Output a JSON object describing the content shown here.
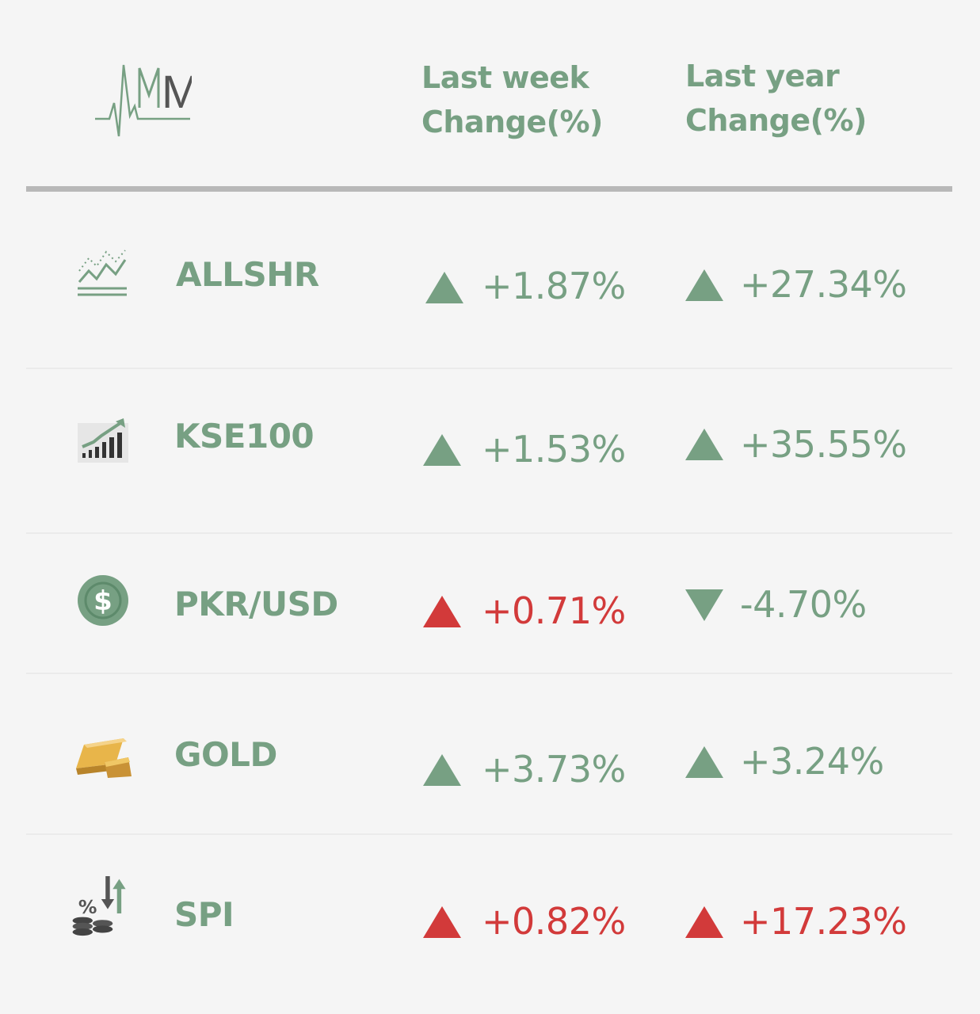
{
  "header": {
    "logo_text": "MP",
    "col_week": [
      "Last week",
      "Change(%)"
    ],
    "col_year": [
      "Last year",
      "Change(%)"
    ]
  },
  "colors": {
    "green": "#77a083",
    "red": "#d23a3a"
  },
  "rows": [
    {
      "icon": "line-chart-icon",
      "name": "ALLSHR",
      "week": {
        "dir": "up",
        "color": "green",
        "value": "+1.87%"
      },
      "year": {
        "dir": "up",
        "color": "green",
        "value": "+27.34%"
      }
    },
    {
      "icon": "bar-chart-trend-icon",
      "name": "KSE100",
      "week": {
        "dir": "up",
        "color": "green",
        "value": "+1.53%"
      },
      "year": {
        "dir": "up",
        "color": "green",
        "value": "+35.55%"
      }
    },
    {
      "icon": "dollar-coin-icon",
      "name": "PKR/USD",
      "week": {
        "dir": "up",
        "color": "red",
        "value": "+0.71%"
      },
      "year": {
        "dir": "down",
        "color": "green",
        "value": "-4.70%"
      }
    },
    {
      "icon": "gold-bars-icon",
      "name": "GOLD",
      "week": {
        "dir": "up",
        "color": "green",
        "value": "+3.73%"
      },
      "year": {
        "dir": "up",
        "color": "green",
        "value": "+3.24%"
      }
    },
    {
      "icon": "percent-coins-arrows-icon",
      "name": "SPI",
      "week": {
        "dir": "up",
        "color": "red",
        "value": "+0.82%"
      },
      "year": {
        "dir": "up",
        "color": "red",
        "value": "+17.23%"
      }
    }
  ]
}
